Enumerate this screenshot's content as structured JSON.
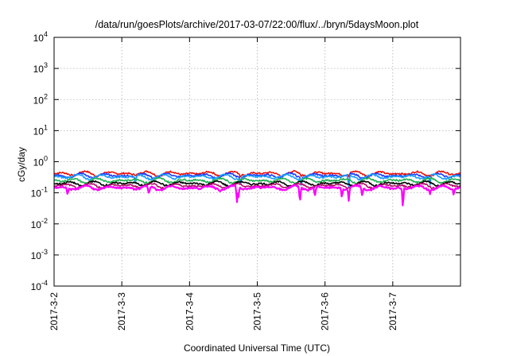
{
  "chart_data": {
    "type": "line",
    "title": "/data/run/goesPlots/archive/2017-03-07/22:00/flux/../bryn/5daysMoon.plot",
    "xlabel": "Coordinated Universal Time (UTC)",
    "ylabel": "cGy/day",
    "y_scale": "log",
    "ylim": [
      0.0001,
      10000
    ],
    "xlim": [
      "2017-03-02",
      "2017-03-08"
    ],
    "grid": true,
    "y_ticks": [
      {
        "base": "10",
        "exp": "4",
        "value": 10000
      },
      {
        "base": "10",
        "exp": "3",
        "value": 1000
      },
      {
        "base": "10",
        "exp": "2",
        "value": 100
      },
      {
        "base": "10",
        "exp": "1",
        "value": 10
      },
      {
        "base": "10",
        "exp": "0",
        "value": 1
      },
      {
        "base": "10",
        "exp": "-1",
        "value": 0.1
      },
      {
        "base": "10",
        "exp": "-2",
        "value": 0.01
      },
      {
        "base": "10",
        "exp": "-3",
        "value": 0.001
      },
      {
        "base": "10",
        "exp": "-4",
        "value": 0.0001
      }
    ],
    "x_ticks": [
      "2017-3-2",
      "2017-3-3",
      "2017-3-4",
      "2017-3-5",
      "2017-3-6",
      "2017-3-7"
    ],
    "series": [
      {
        "color": "#e8120c",
        "base": 0.42,
        "dips": [
          [
            2.75,
            0.3
          ],
          [
            3.65,
            0.32
          ],
          [
            4.35,
            0.33
          ],
          [
            5.55,
            0.33
          ]
        ]
      },
      {
        "color": "#1f3cff",
        "base": 0.36,
        "dips": [
          [
            1.2,
            0.22
          ],
          [
            2.75,
            0.18
          ],
          [
            3.65,
            0.15
          ],
          [
            4.35,
            0.16
          ],
          [
            5.55,
            0.2
          ]
        ]
      },
      {
        "color": "#1aa0ff",
        "base": 0.33,
        "dips": [
          [
            1.2,
            0.2
          ],
          [
            2.75,
            0.16
          ],
          [
            3.65,
            0.14
          ],
          [
            4.35,
            0.15
          ],
          [
            5.55,
            0.18
          ]
        ]
      },
      {
        "color": "#20b050",
        "base": 0.25,
        "dips": []
      },
      {
        "color": "#000000",
        "base": 0.2,
        "dips": []
      },
      {
        "color": "#b0106a",
        "base": 0.17,
        "dips": []
      },
      {
        "color": "#ff00ff",
        "base": 0.145,
        "dips": [
          [
            0.2,
            0.08
          ],
          [
            1.4,
            0.09
          ],
          [
            2.7,
            0.05
          ],
          [
            2.72,
            0.06
          ],
          [
            3.63,
            0.035
          ],
          [
            3.85,
            0.07
          ],
          [
            4.25,
            0.06
          ],
          [
            4.35,
            0.055
          ],
          [
            4.55,
            0.07
          ],
          [
            5.15,
            0.014
          ],
          [
            5.55,
            0.09
          ],
          [
            5.9,
            0.075
          ]
        ]
      }
    ]
  }
}
